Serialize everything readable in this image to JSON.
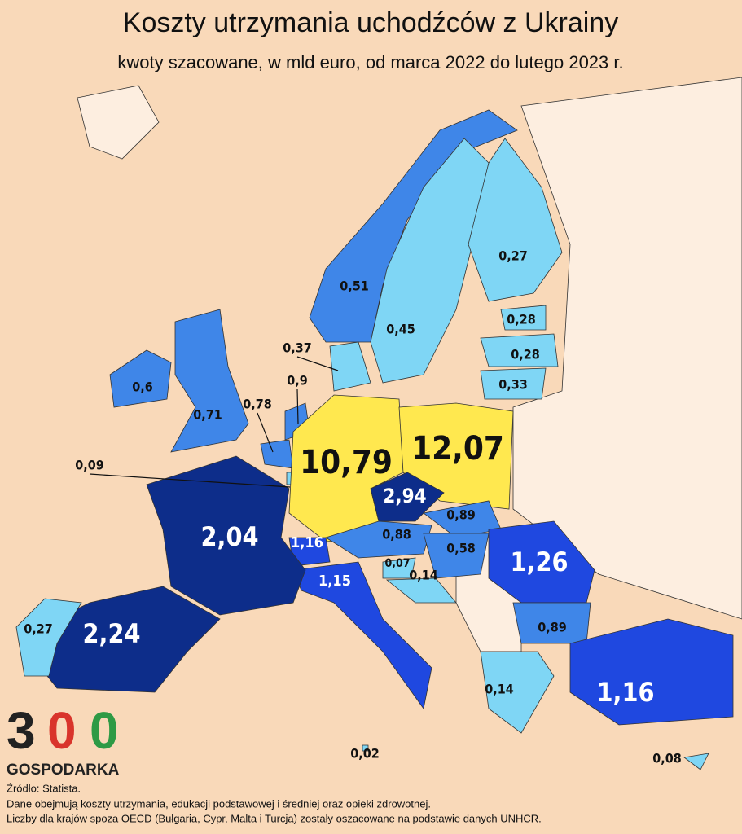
{
  "title": "Koszty utrzymania uchodźców z Ukrainy",
  "subtitle": "kwoty szacowane, w mld euro, od marca 2022 do lutego 2023 r.",
  "regions": [
    {
      "label": "0,6",
      "color": "#3f86e8"
    },
    {
      "label": "0,71",
      "color": "#3f86e8"
    },
    {
      "label": "0,51",
      "color": "#3f86e8"
    },
    {
      "label": "0,45",
      "color": "#7fd6f5"
    },
    {
      "label": "0,27",
      "color": "#7fd6f5"
    },
    {
      "label": "0,28",
      "color": "#7fd6f5"
    },
    {
      "label": "0,28",
      "color": "#7fd6f5"
    },
    {
      "label": "0,33",
      "color": "#7fd6f5"
    },
    {
      "label": "0,37",
      "color": "#7fd6f5"
    },
    {
      "label": "0,9",
      "color": "#3f86e8"
    },
    {
      "label": "0,78",
      "color": "#3f86e8"
    },
    {
      "label": "0,09",
      "color": "#7fd6f5"
    },
    {
      "label": "10,79",
      "color": "#ffe84f"
    },
    {
      "label": "12,07",
      "color": "#ffe84f"
    },
    {
      "label": "2,94",
      "color": "#0d2d8a"
    },
    {
      "label": "0,89",
      "color": "#3f86e8"
    },
    {
      "label": "0,88",
      "color": "#3f86e8"
    },
    {
      "label": "0,58",
      "color": "#3f86e8"
    },
    {
      "label": "1,16",
      "color": "#1f48e0"
    },
    {
      "label": "1,15",
      "color": "#1f48e0"
    },
    {
      "label": "0,07",
      "color": "#7fd6f5"
    },
    {
      "label": "0,14",
      "color": "#7fd6f5"
    },
    {
      "label": "1,26",
      "color": "#1f48e0"
    },
    {
      "label": "0,89",
      "color": "#3f86e8"
    },
    {
      "label": "0,14",
      "color": "#7fd6f5"
    },
    {
      "label": "1,16",
      "color": "#1f48e0"
    },
    {
      "label": "0,08",
      "color": "#7fd6f5"
    },
    {
      "label": "0,02",
      "color": "#7fd6f5"
    },
    {
      "label": "2,04",
      "color": "#0d2d8a"
    },
    {
      "label": "2,24",
      "color": "#0d2d8a"
    },
    {
      "label": "0,27",
      "color": "#7fd6f5"
    }
  ],
  "logo": {
    "digits": [
      "3",
      "0",
      "0"
    ],
    "name": "GOSPODARKA"
  },
  "notes": [
    "Źródło: Statista.",
    "Dane obejmują koszty utrzymania, edukacji podstawowej i średniej oraz opieki zdrowotnej.",
    "Liczby dla krajów spoza OECD (Bułgaria, Cypr, Malta i Turcja) zostały oszacowane na podstawie danych UNHCR."
  ]
}
